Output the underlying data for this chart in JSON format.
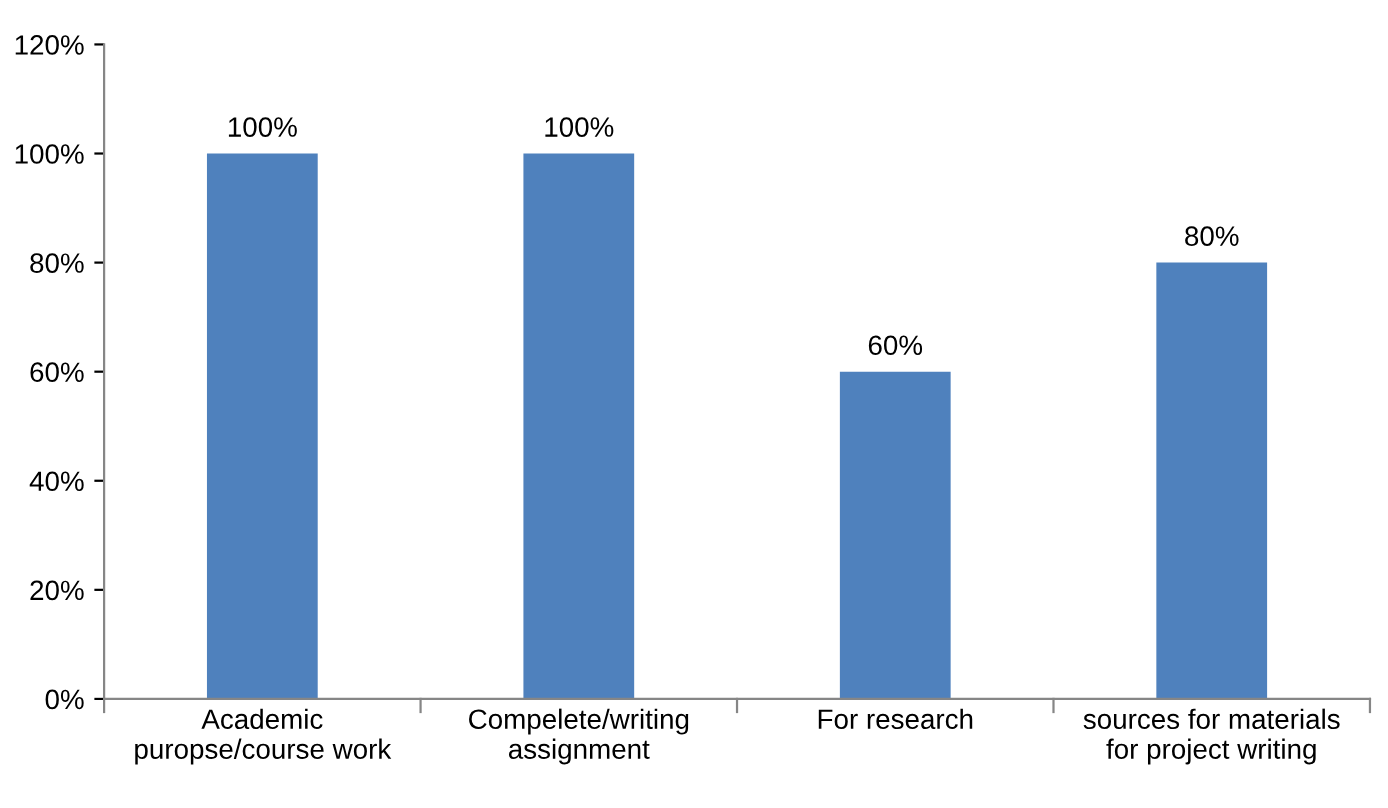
{
  "chart_data": {
    "type": "bar",
    "categories": [
      "Academic\npuropse/course work",
      "Compelete/writing\nassignment",
      "For research",
      "sources for materials\nfor project writing"
    ],
    "values": [
      100,
      100,
      60,
      80
    ],
    "value_labels": [
      "100%",
      "100%",
      "60%",
      "80%"
    ],
    "color": "#4f81bd",
    "ylim": [
      0,
      120
    ],
    "yticks": [
      {
        "value": 0,
        "label": "0%"
      },
      {
        "value": 20,
        "label": "20%"
      },
      {
        "value": 40,
        "label": "40%"
      },
      {
        "value": 60,
        "label": "60%"
      },
      {
        "value": 80,
        "label": "80%"
      },
      {
        "value": 100,
        "label": "100%"
      },
      {
        "value": 120,
        "label": "120%"
      }
    ],
    "grid": false,
    "legend": false
  }
}
